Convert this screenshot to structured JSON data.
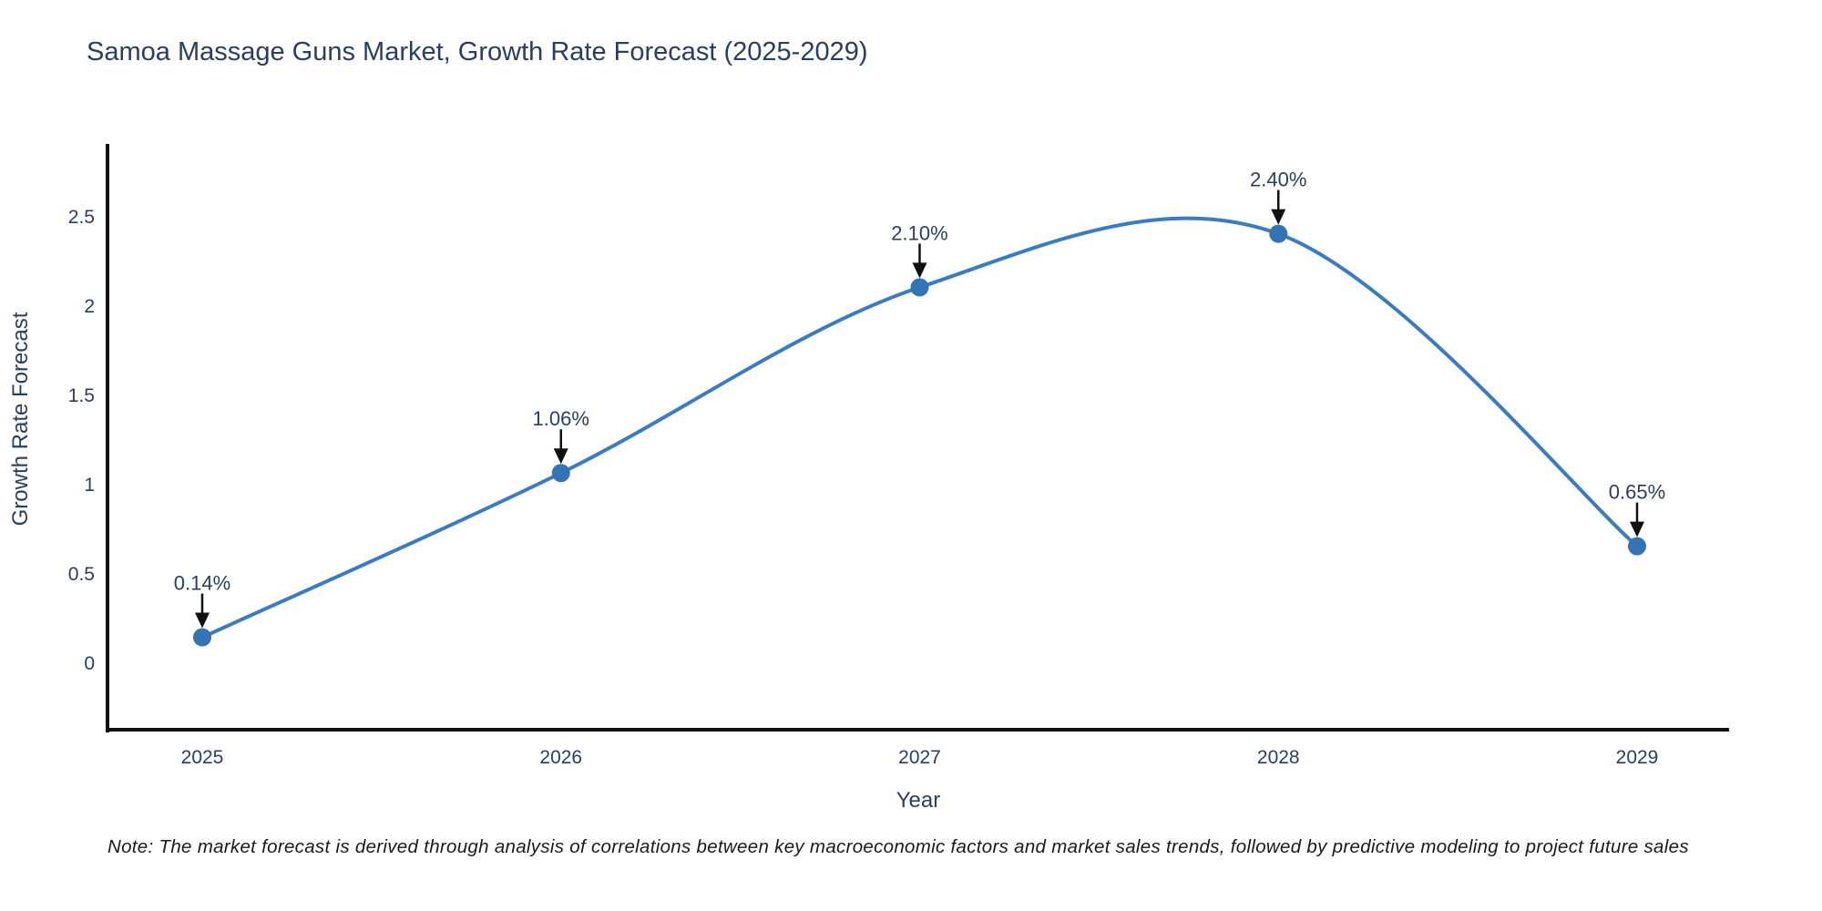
{
  "page": {
    "note": "Note: The market forecast is derived through analysis of correlations between key macroeconomic factors and market sales trends, followed by predictive modeling to project future sales"
  },
  "chart_data": {
    "type": "line",
    "title": "Samoa Massage Guns Market, Growth Rate Forecast (2025-2029)",
    "xlabel": "Year",
    "ylabel": "Growth Rate Forecast",
    "categories": [
      "2025",
      "2026",
      "2027",
      "2028",
      "2029"
    ],
    "values": [
      0.14,
      1.06,
      2.1,
      2.4,
      0.65
    ],
    "labels": [
      "0.14%",
      "1.06%",
      "2.10%",
      "2.40%",
      "0.65%"
    ],
    "yticks": [
      0,
      0.5,
      1,
      1.5,
      2,
      2.5
    ],
    "ytick_labels": [
      "0",
      "0.5",
      "1",
      "1.5",
      "2",
      "2.5"
    ],
    "ylim": [
      -0.38,
      2.9
    ],
    "line_shape": "spline",
    "grid": false,
    "legend": "none",
    "markers": true,
    "annotation_style": "value label with down arrow to point",
    "colors": {
      "line": "#3a7cbf",
      "marker": "#3474b4",
      "annotation_arrow": "#111111",
      "axis_line": "#111111",
      "title_text": "#2a3f5f",
      "tick_text": "#2a3f5f",
      "note_text": "#1a1a1a",
      "background": "#ffffff"
    }
  }
}
